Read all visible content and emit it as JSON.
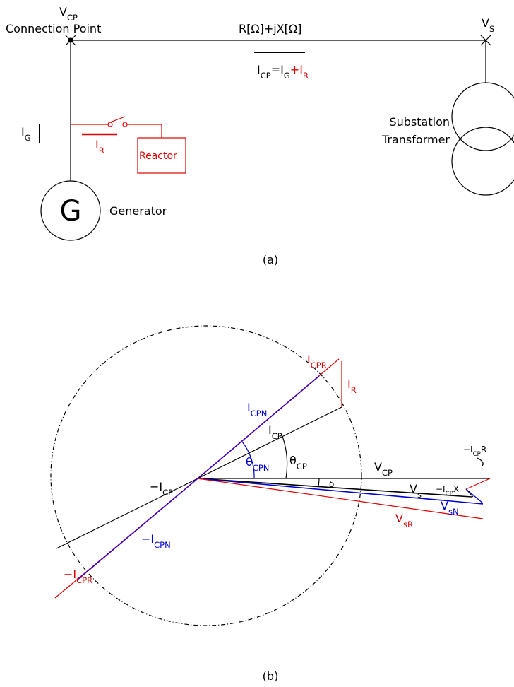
{
  "panel_a": {
    "vcp": [
      {
        "text": "V"
      },
      {
        "text": "CP",
        "sub": true
      }
    ],
    "connection_point": "Connection Point",
    "impedance": "R[Ω]+jX[Ω]",
    "vs": [
      {
        "text": "V"
      },
      {
        "text": "S",
        "sub": true
      }
    ],
    "icp_eq": [
      {
        "text": "I"
      },
      {
        "text": "CP",
        "sub": true
      },
      {
        "text": "=I"
      },
      {
        "text": "G",
        "sub": true
      },
      {
        "text": "+I",
        "color": "#e00000"
      },
      {
        "text": "R",
        "sub": true,
        "color": "#e00000"
      }
    ],
    "ir": [
      {
        "text": "I"
      },
      {
        "text": "R",
        "sub": true
      }
    ],
    "ig": [
      {
        "text": "I"
      },
      {
        "text": "G",
        "sub": true
      }
    ],
    "reactor": "Reactor",
    "generator_symbol": "G",
    "generator": "Generator",
    "substation": [
      "Substation",
      "Transformer"
    ],
    "caption": "(a)"
  },
  "panel_b": {
    "icpr": [
      {
        "text": "I"
      },
      {
        "text": "CPR",
        "sub": true
      }
    ],
    "ir": [
      {
        "text": "I"
      },
      {
        "text": "R",
        "sub": true
      }
    ],
    "icpn": [
      {
        "text": "I"
      },
      {
        "text": "CPN",
        "sub": true
      }
    ],
    "icp": [
      {
        "text": "I"
      },
      {
        "text": "CP",
        "sub": true
      }
    ],
    "theta_cpn": [
      {
        "text": "θ"
      },
      {
        "text": "CPN",
        "sub": true
      }
    ],
    "theta_cp": [
      {
        "text": "θ"
      },
      {
        "text": "CP",
        "sub": true
      }
    ],
    "vcp": [
      {
        "text": "V"
      },
      {
        "text": "CP",
        "sub": true
      }
    ],
    "neg_icp_r": [
      {
        "text": "−I"
      },
      {
        "text": "CP",
        "sub": true
      },
      {
        "text": "R"
      }
    ],
    "neg_icp": [
      {
        "text": "−I"
      },
      {
        "text": "CP",
        "sub": true
      }
    ],
    "delta": "δ",
    "vs": [
      {
        "text": "V"
      },
      {
        "text": "s",
        "sub": true
      }
    ],
    "neg_icp_x": [
      {
        "text": "−I"
      },
      {
        "text": "CP",
        "sub": true
      },
      {
        "text": "X"
      }
    ],
    "vsn": [
      {
        "text": "V"
      },
      {
        "text": "sN",
        "sub": true
      }
    ],
    "vsr": [
      {
        "text": "V"
      },
      {
        "text": "sR",
        "sub": true
      }
    ],
    "neg_icpn": [
      {
        "text": "−I"
      },
      {
        "text": "CPN",
        "sub": true
      }
    ],
    "neg_icpr": [
      {
        "text": "−I"
      },
      {
        "text": "CPR",
        "sub": true
      }
    ],
    "caption": "(b)"
  }
}
